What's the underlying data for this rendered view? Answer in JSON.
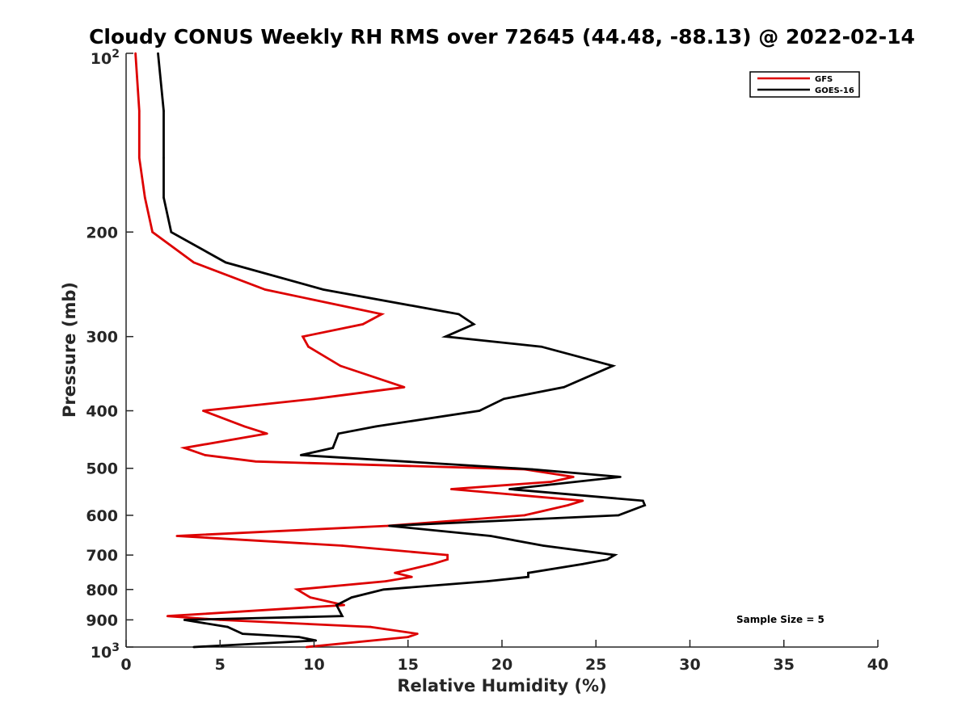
{
  "chart_data": {
    "type": "line",
    "title": "Cloudy CONUS Weekly RH RMS over 72645 (44.48, -88.13) @ 2022-02-14",
    "xlabel": "Relative Humidity (%)",
    "ylabel": "Pressure (mb)",
    "xlim": [
      0,
      40
    ],
    "ylim": [
      100,
      1000
    ],
    "y_scale": "log",
    "y_reversed": true,
    "x_ticks": [
      0,
      5,
      10,
      15,
      20,
      25,
      30,
      35,
      40
    ],
    "x_tick_labels": [
      "0",
      "5",
      "10",
      "15",
      "20",
      "25",
      "30",
      "35",
      "40"
    ],
    "y_ticks": [
      100,
      200,
      300,
      400,
      500,
      600,
      700,
      800,
      900,
      1000
    ],
    "y_tick_labels": [
      {
        "base": "10",
        "exp": "2"
      },
      {
        "base": "200",
        "exp": ""
      },
      {
        "base": "300",
        "exp": ""
      },
      {
        "base": "400",
        "exp": ""
      },
      {
        "base": "500",
        "exp": ""
      },
      {
        "base": "600",
        "exp": ""
      },
      {
        "base": "700",
        "exp": ""
      },
      {
        "base": "800",
        "exp": ""
      },
      {
        "base": "900",
        "exp": ""
      },
      {
        "base": "10",
        "exp": "3"
      }
    ],
    "grid": false,
    "legend_position": "top-right",
    "annotation": "Sample Size = 5",
    "series": [
      {
        "name": "GFS",
        "color": "#dd0000",
        "points": [
          [
            0.5,
            100
          ],
          [
            0.7,
            125
          ],
          [
            0.7,
            150
          ],
          [
            1.0,
            175
          ],
          [
            1.4,
            200
          ],
          [
            3.6,
            225
          ],
          [
            7.4,
            250
          ],
          [
            13.6,
            275
          ],
          [
            12.6,
            286
          ],
          [
            9.4,
            300
          ],
          [
            9.7,
            312
          ],
          [
            11.4,
            336
          ],
          [
            14.8,
            365
          ],
          [
            10.0,
            382
          ],
          [
            4.1,
            400
          ],
          [
            6.3,
            425
          ],
          [
            7.5,
            437
          ],
          [
            3.1,
            462
          ],
          [
            4.2,
            475
          ],
          [
            6.9,
            487
          ],
          [
            21.2,
            502
          ],
          [
            23.8,
            517
          ],
          [
            22.6,
            527
          ],
          [
            17.3,
            542
          ],
          [
            24.3,
            567
          ],
          [
            23.5,
            577
          ],
          [
            21.2,
            600
          ],
          [
            13.9,
            625
          ],
          [
            2.7,
            650
          ],
          [
            11.5,
            675
          ],
          [
            17.1,
            700
          ],
          [
            17.1,
            712
          ],
          [
            16.3,
            725
          ],
          [
            14.3,
            750
          ],
          [
            15.2,
            762
          ],
          [
            13.8,
            775
          ],
          [
            9.1,
            800
          ],
          [
            9.8,
            825
          ],
          [
            11.6,
            850
          ],
          [
            2.2,
            887
          ],
          [
            5.0,
            900
          ],
          [
            13.0,
            925
          ],
          [
            15.5,
            950
          ],
          [
            15.0,
            962
          ],
          [
            9.6,
            1000
          ]
        ]
      },
      {
        "name": "GOES-16",
        "color": "#000000",
        "points": [
          [
            1.7,
            100
          ],
          [
            2.0,
            125
          ],
          [
            2.0,
            150
          ],
          [
            2.0,
            175
          ],
          [
            2.4,
            200
          ],
          [
            5.3,
            225
          ],
          [
            10.5,
            250
          ],
          [
            17.7,
            275
          ],
          [
            18.5,
            286
          ],
          [
            17.0,
            300
          ],
          [
            22.1,
            312
          ],
          [
            25.9,
            336
          ],
          [
            23.3,
            365
          ],
          [
            20.1,
            382
          ],
          [
            18.8,
            400
          ],
          [
            13.3,
            425
          ],
          [
            11.3,
            437
          ],
          [
            11.0,
            462
          ],
          [
            9.3,
            475
          ],
          [
            21.6,
            502
          ],
          [
            26.3,
            517
          ],
          [
            20.4,
            542
          ],
          [
            27.5,
            567
          ],
          [
            27.6,
            577
          ],
          [
            26.2,
            600
          ],
          [
            14.0,
            625
          ],
          [
            19.4,
            650
          ],
          [
            22.2,
            675
          ],
          [
            26.0,
            700
          ],
          [
            25.6,
            712
          ],
          [
            24.3,
            725
          ],
          [
            21.4,
            750
          ],
          [
            21.4,
            762
          ],
          [
            19.2,
            775
          ],
          [
            13.7,
            800
          ],
          [
            12.0,
            825
          ],
          [
            11.2,
            850
          ],
          [
            11.5,
            887
          ],
          [
            3.1,
            900
          ],
          [
            5.4,
            925
          ],
          [
            6.2,
            950
          ],
          [
            9.2,
            962
          ],
          [
            10.1,
            975
          ],
          [
            3.6,
            1000
          ]
        ]
      }
    ]
  }
}
